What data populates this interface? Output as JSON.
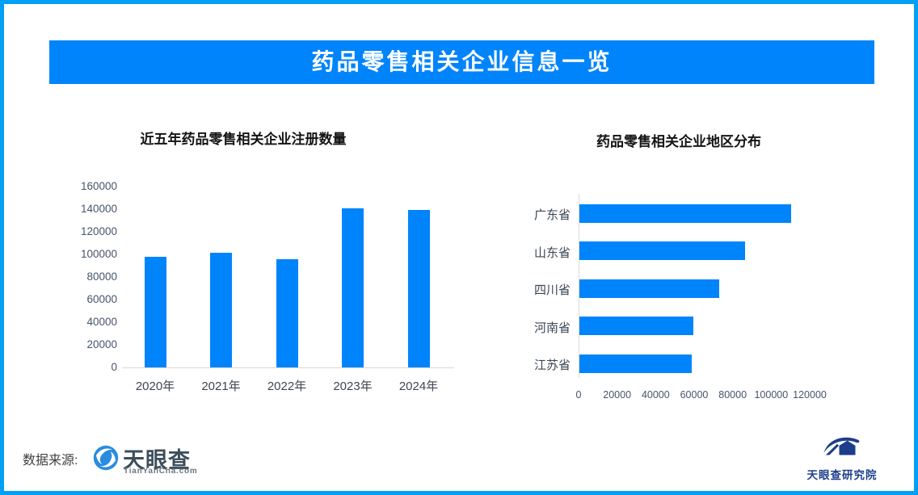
{
  "page": {
    "banner_title": "药品零售相关企业信息一览"
  },
  "footer": {
    "source_label": "数据来源:",
    "tyc_logo_name": "天眼查",
    "tyc_logo_sub": "TianYanCha.com",
    "research_logo_name": "天眼查研究院"
  },
  "colors": {
    "border": "#00A0F5",
    "banner_bg": "#0084FB",
    "bar_blue": "#0084FB",
    "axis_line": "#D9D9D9",
    "axis_text": "#44546A",
    "research_blue": "#1C3E8C"
  },
  "chart_data": [
    {
      "type": "bar",
      "orientation": "vertical",
      "title": "近五年药品零售相关企业注册数量",
      "categories": [
        "2020年",
        "2021年",
        "2022年",
        "2023年",
        "2024年"
      ],
      "values": [
        98000,
        101500,
        96000,
        141000,
        139000
      ],
      "ylabel": "",
      "xlabel": "",
      "ylim": [
        0,
        160000
      ],
      "yticks": [
        0,
        20000,
        40000,
        60000,
        80000,
        100000,
        120000,
        140000,
        160000
      ],
      "grid": false,
      "bar_color": "#0084FB"
    },
    {
      "type": "bar",
      "orientation": "horizontal",
      "title": "药品零售相关企业地区分布",
      "categories": [
        "广东省",
        "山东省",
        "四川省",
        "河南省",
        "江苏省"
      ],
      "values": [
        110000,
        86000,
        72500,
        59000,
        58500
      ],
      "ylabel": "",
      "xlabel": "",
      "xlim": [
        0,
        120000
      ],
      "xticks": [
        0,
        20000,
        40000,
        60000,
        80000,
        100000,
        120000
      ],
      "grid": false,
      "bar_color": "#0084FB"
    }
  ]
}
